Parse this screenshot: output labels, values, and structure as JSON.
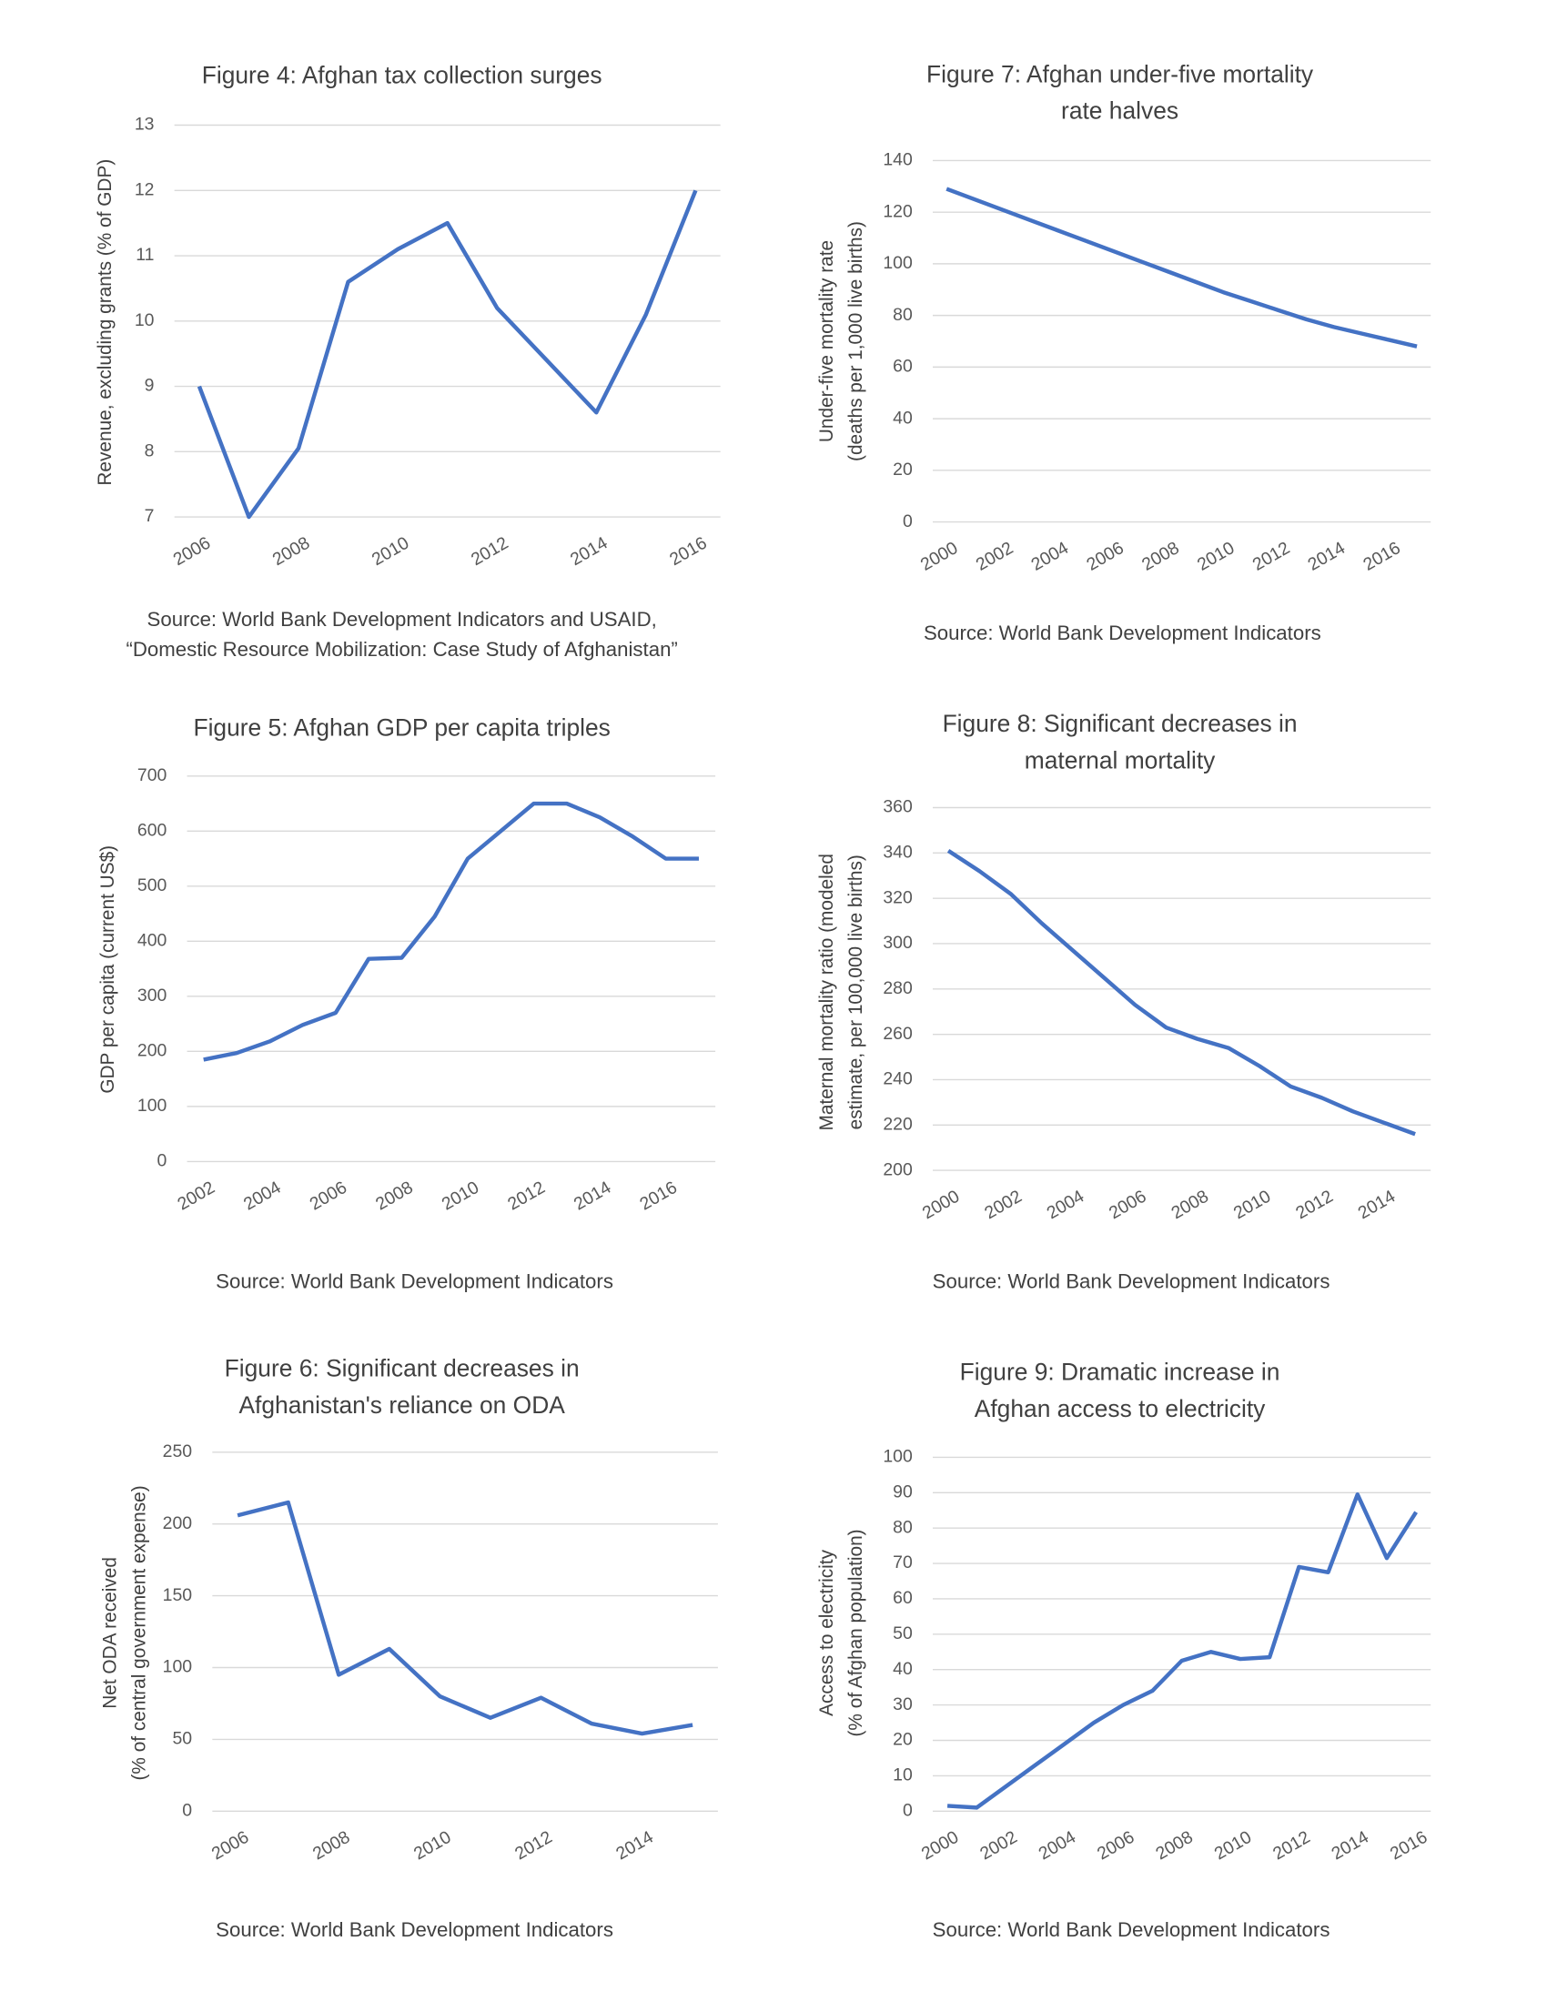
{
  "chart_data": [
    {
      "type": "line",
      "title": [
        "Figure 4: Afghan tax collection surges"
      ],
      "ylabel": [
        "Revenue, excluding grants (% of GDP)"
      ],
      "source": [
        "Source: World Bank Development Indicators and USAID,",
        "“Domestic Resource Mobilization: Case Study of Afghanistan”"
      ],
      "x": [
        2006,
        2007,
        2008,
        2009,
        2010,
        2011,
        2012,
        2013,
        2014,
        2015,
        2016
      ],
      "xlim": [
        2005.5,
        2016.5
      ],
      "xticks": [
        2006,
        2008,
        2010,
        2012,
        2014,
        2016
      ],
      "series": [
        {
          "color": "#4472c4",
          "values": [
            9.0,
            7.0,
            8.05,
            10.6,
            11.1,
            11.5,
            10.2,
            9.4,
            8.6,
            10.1,
            12.0
          ]
        }
      ],
      "ylim": [
        7,
        13
      ],
      "yticks": [
        7,
        8,
        9,
        10,
        11,
        12,
        13
      ],
      "grid": true
    },
    {
      "type": "line",
      "title": [
        "Figure 7: Afghan under-five mortality",
        "rate halves"
      ],
      "ylabel": [
        "Under-five mortality rate",
        "(deaths per 1,000 live births)"
      ],
      "source": [
        "Source: World Bank Development Indicators"
      ],
      "x": [
        2000,
        2001,
        2002,
        2003,
        2004,
        2005,
        2006,
        2007,
        2008,
        2009,
        2010,
        2011,
        2012,
        2013,
        2014,
        2015,
        2016,
        2017
      ],
      "xlim": [
        1999.5,
        2017.5
      ],
      "xticks": [
        2000,
        2002,
        2004,
        2006,
        2008,
        2010,
        2012,
        2014,
        2016
      ],
      "series": [
        {
          "color": "#4472c4",
          "values": [
            129,
            125,
            121,
            117,
            113,
            109,
            105,
            101,
            97,
            93,
            89,
            85.5,
            82,
            78.5,
            75.5,
            73,
            70.5,
            68
          ]
        }
      ],
      "ylim": [
        0,
        140
      ],
      "yticks": [
        0,
        20,
        40,
        60,
        80,
        100,
        120,
        140
      ],
      "grid": true
    },
    {
      "type": "line",
      "title": [
        "Figure 5: Afghan GDP per capita triples"
      ],
      "ylabel": [
        "GDP per capita (current US$)"
      ],
      "source": [
        "Source: World Bank Development Indicators"
      ],
      "x": [
        2002,
        2003,
        2004,
        2005,
        2006,
        2007,
        2008,
        2009,
        2010,
        2011,
        2012,
        2013,
        2014,
        2015,
        2016,
        2017
      ],
      "xlim": [
        2001.5,
        2017.5
      ],
      "xticks": [
        2002,
        2004,
        2006,
        2008,
        2010,
        2012,
        2014,
        2016
      ],
      "series": [
        {
          "color": "#4472c4",
          "values": [
            185,
            197,
            218,
            248,
            270,
            368,
            370,
            445,
            550,
            600,
            650,
            650,
            625,
            590,
            550,
            550
          ]
        }
      ],
      "ylim": [
        0,
        700
      ],
      "yticks": [
        0,
        100,
        200,
        300,
        400,
        500,
        600,
        700
      ],
      "grid": true
    },
    {
      "type": "line",
      "title": [
        "Figure 8: Significant decreases in",
        "maternal mortality"
      ],
      "ylabel": [
        "Maternal mortality ratio (modeled",
        "estimate, per 100,000 live births)"
      ],
      "source": [
        "Source: World Bank Development Indicators"
      ],
      "x": [
        2000,
        2001,
        2002,
        2003,
        2004,
        2005,
        2006,
        2007,
        2008,
        2009,
        2010,
        2011,
        2012,
        2013,
        2014,
        2015
      ],
      "xlim": [
        1999.5,
        2015.5
      ],
      "xticks": [
        2000,
        2002,
        2004,
        2006,
        2008,
        2010,
        2012,
        2014
      ],
      "series": [
        {
          "color": "#4472c4",
          "values": [
            341,
            332,
            322,
            309,
            297,
            285,
            273,
            263,
            258,
            254,
            246,
            237,
            232,
            226,
            221,
            216
          ]
        }
      ],
      "ylim": [
        200,
        360
      ],
      "yticks": [
        200,
        220,
        240,
        260,
        280,
        300,
        320,
        340,
        360
      ],
      "grid": true
    },
    {
      "type": "line",
      "title": [
        "Figure 6: Significant decreases in",
        "Afghanistan's reliance on ODA"
      ],
      "ylabel": [
        "Net ODA received",
        "(% of central government expense)"
      ],
      "source": [
        "Source: World Bank Development Indicators"
      ],
      "x": [
        2006,
        2007,
        2008,
        2009,
        2010,
        2011,
        2012,
        2013,
        2014,
        2015
      ],
      "xlim": [
        2005.5,
        2015.5
      ],
      "xticks": [
        2006,
        2008,
        2010,
        2012,
        2014
      ],
      "series": [
        {
          "color": "#4472c4",
          "values": [
            206,
            215,
            95,
            113,
            80,
            65,
            79,
            61,
            54,
            60
          ]
        }
      ],
      "ylim": [
        0,
        250
      ],
      "yticks": [
        0,
        50,
        100,
        150,
        200,
        250
      ],
      "grid": true
    },
    {
      "type": "line",
      "title": [
        "Figure 9: Dramatic increase in",
        "Afghan access to electricity"
      ],
      "ylabel": [
        "Access to electricity",
        "(% of Afghan population)"
      ],
      "source": [
        "Source: World Bank Development Indicators"
      ],
      "x": [
        2000,
        2001,
        2002,
        2003,
        2004,
        2005,
        2006,
        2007,
        2008,
        2009,
        2010,
        2011,
        2012,
        2013,
        2014,
        2015,
        2016
      ],
      "xlim": [
        1999.5,
        2016.5
      ],
      "xticks": [
        2000,
        2002,
        2004,
        2006,
        2008,
        2010,
        2012,
        2014,
        2016
      ],
      "series": [
        {
          "color": "#4472c4",
          "values": [
            1.5,
            1,
            7,
            13,
            19,
            25,
            30,
            34,
            42.5,
            45,
            43,
            43.5,
            69,
            67.5,
            89.5,
            71.5,
            84.5
          ]
        }
      ],
      "ylim": [
        0,
        100
      ],
      "yticks": [
        0,
        10,
        20,
        30,
        40,
        50,
        60,
        70,
        80,
        90,
        100
      ],
      "grid": true
    }
  ]
}
